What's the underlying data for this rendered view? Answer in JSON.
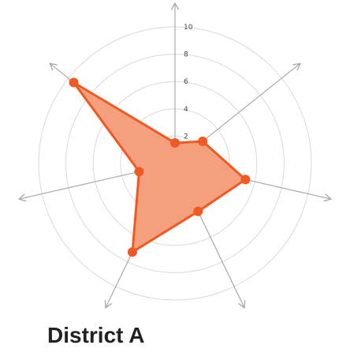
{
  "chart_data": {
    "type": "radar",
    "title": "District A",
    "axes_count": 7,
    "rmax": 10,
    "ticks": [
      "2",
      "4",
      "6",
      "8",
      "10"
    ],
    "values": [
      1.5,
      2.6,
      5.3,
      3.9,
      7.2,
      2.7,
      9.5
    ],
    "colors": {
      "fill": "#f4a07f",
      "line": "#f05a22",
      "point": "#f05a22",
      "grid": "#d9d9d9",
      "axis": "#a9a9a9"
    }
  }
}
